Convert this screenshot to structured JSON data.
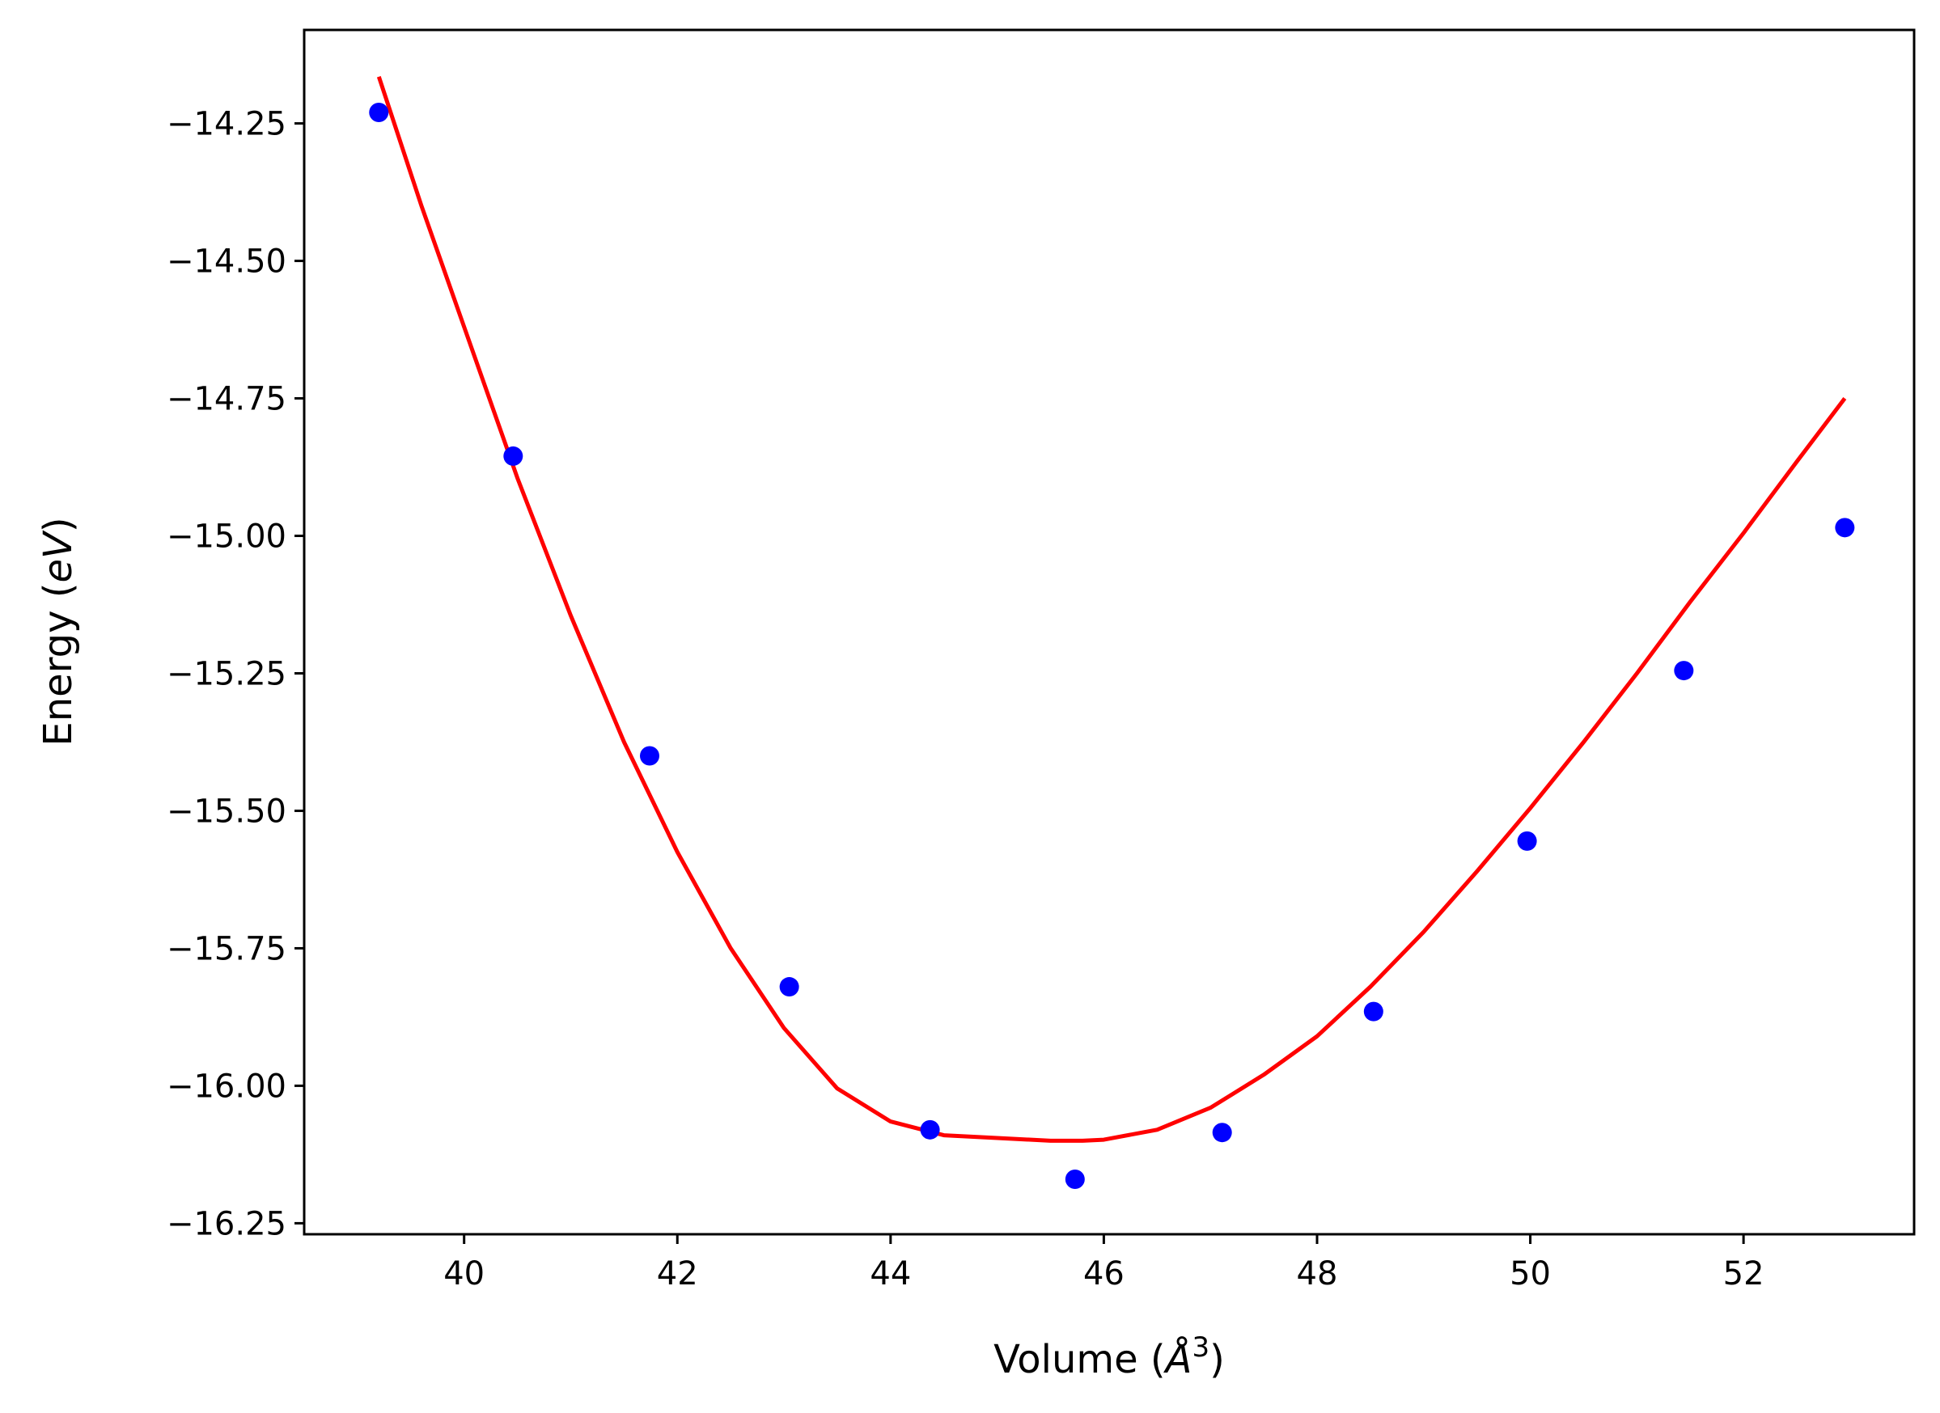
{
  "chart_data": {
    "type": "scatter",
    "xlabel": {
      "prefix": "Volume (",
      "var": "Å",
      "sup": "3",
      "suffix": ")"
    },
    "ylabel": {
      "prefix": "Energy (",
      "var": "eV",
      "suffix": ")"
    },
    "xlim": [
      38.5,
      53.6
    ],
    "ylim": [
      -16.27,
      -14.08
    ],
    "xticks": [
      40,
      42,
      44,
      46,
      48,
      50,
      52
    ],
    "yticks": [
      -14.25,
      -14.5,
      -14.75,
      -15.0,
      -15.25,
      -15.5,
      -15.75,
      -16.0,
      -16.25
    ],
    "xtick_labels": [
      "40",
      "42",
      "44",
      "46",
      "48",
      "50",
      "52"
    ],
    "ytick_labels": [
      "−14.25",
      "−14.50",
      "−14.75",
      "−15.00",
      "−15.25",
      "−15.50",
      "−15.75",
      "−16.00",
      "−16.25"
    ],
    "grid": false,
    "series": [
      {
        "kind": "points",
        "color": "#0000ff",
        "x": [
          39.2,
          40.46,
          41.74,
          43.05,
          44.37,
          45.73,
          47.11,
          48.53,
          49.97,
          51.44,
          52.95
        ],
        "y": [
          -14.23,
          -14.855,
          -15.4,
          -15.82,
          -16.08,
          -16.17,
          -16.085,
          -15.865,
          -15.555,
          -15.245,
          -14.985
        ]
      },
      {
        "kind": "fit-line",
        "color": "#ff0000",
        "x": [
          39.2,
          39.6,
          40.0,
          40.5,
          41.0,
          41.5,
          42.0,
          42.5,
          43.0,
          43.5,
          44.0,
          44.5,
          45.0,
          45.5,
          45.8,
          46.0,
          46.5,
          47.0,
          47.5,
          48.0,
          48.5,
          49.0,
          49.5,
          50.0,
          50.5,
          51.0,
          51.5,
          52.0,
          52.5,
          52.95
        ],
        "y": [
          -14.165,
          -14.4,
          -14.62,
          -14.895,
          -15.145,
          -15.375,
          -15.575,
          -15.75,
          -15.895,
          -16.005,
          -16.065,
          -16.09,
          -16.095,
          -16.1,
          -16.1,
          -16.098,
          -16.08,
          -16.04,
          -15.98,
          -15.91,
          -15.82,
          -15.72,
          -15.61,
          -15.495,
          -15.375,
          -15.25,
          -15.12,
          -14.995,
          -14.865,
          -14.75
        ]
      }
    ]
  }
}
